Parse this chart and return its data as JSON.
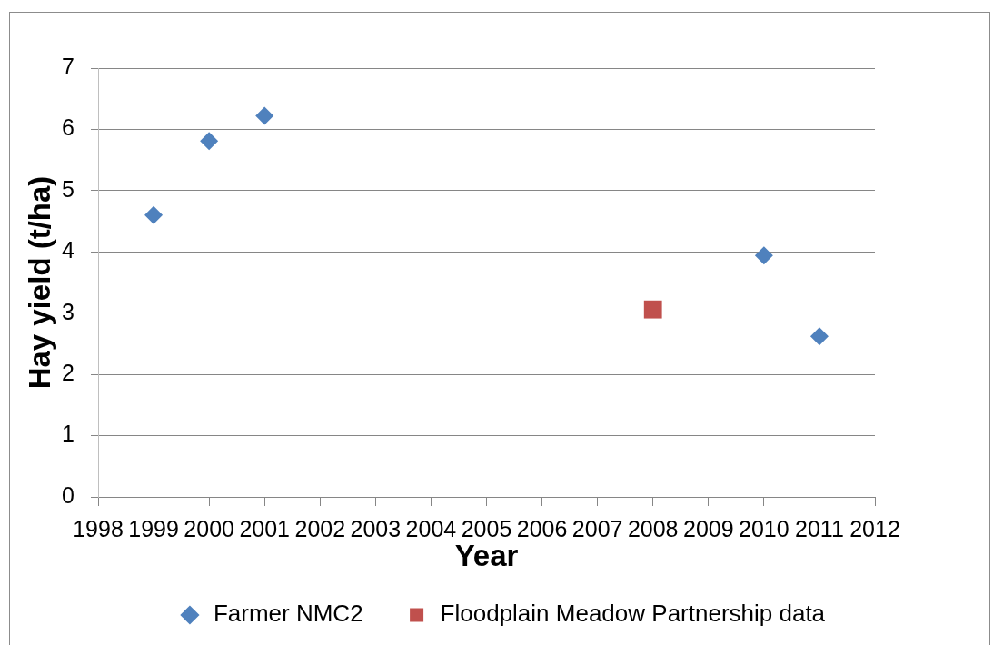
{
  "chart_data": {
    "type": "scatter",
    "xlabel": "Year",
    "ylabel": "Hay yield (t/ha)",
    "series": [
      {
        "name": "Farmer NMC2",
        "color": "#4f81bd",
        "marker": "diamond",
        "x": [
          1999,
          2000,
          2001,
          2010,
          2011
        ],
        "values": [
          4.6,
          5.81,
          6.22,
          3.94,
          2.62
        ]
      },
      {
        "name": "Floodplain Meadow Partnership data",
        "color": "#c0504d",
        "marker": "square",
        "x": [
          2008
        ],
        "values": [
          3.06
        ]
      }
    ],
    "xlim": [
      1998,
      2012
    ],
    "xticks": [
      1998,
      1999,
      2000,
      2001,
      2002,
      2003,
      2004,
      2005,
      2006,
      2007,
      2008,
      2009,
      2010,
      2011,
      2012
    ],
    "ylim": [
      0,
      7
    ],
    "yticks": [
      0,
      1,
      2,
      3,
      4,
      5,
      6,
      7
    ],
    "grid": "y",
    "legend": "bottom"
  }
}
